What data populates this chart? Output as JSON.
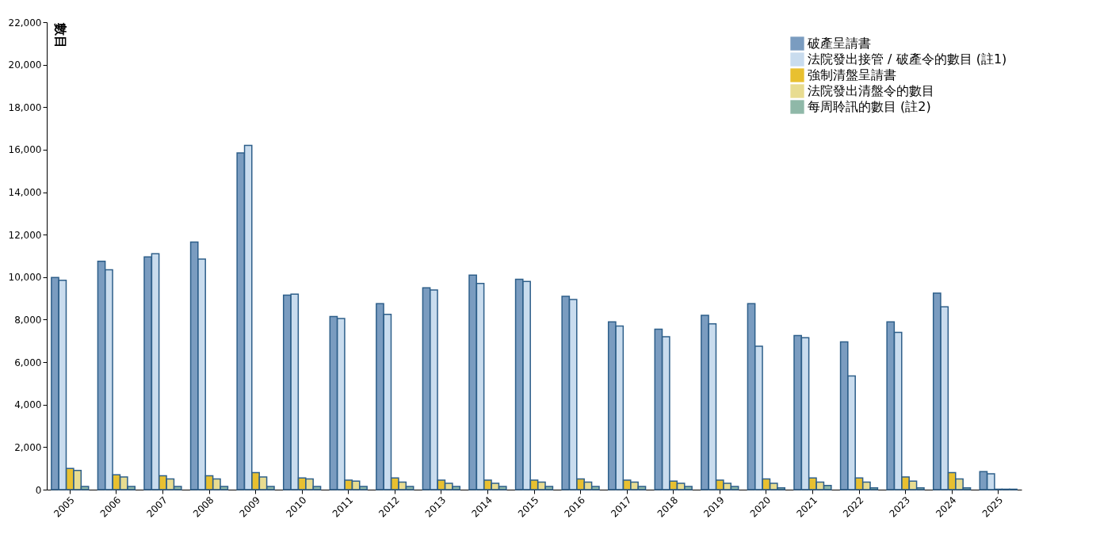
{
  "chart_data": {
    "type": "bar",
    "ylabel": "數目",
    "categories": [
      "2005",
      "2006",
      "2007",
      "2008",
      "2009",
      "2010",
      "2011",
      "2012",
      "2013",
      "2014",
      "2015",
      "2016",
      "2017",
      "2018",
      "2019",
      "2020",
      "2021",
      "2022",
      "2023",
      "2024",
      "2025"
    ],
    "series": [
      {
        "name": "破產呈請書",
        "color": "#7a9cc0",
        "values": [
          9980,
          10750,
          10950,
          11650,
          15850,
          9150,
          8150,
          8750,
          9500,
          10100,
          9900,
          9100,
          7900,
          7550,
          8200,
          8750,
          7250,
          6950,
          7900,
          9250,
          850
        ]
      },
      {
        "name": "法院發出接管 / 破產令的數目 (註1)",
        "color": "#c9dcee",
        "values": [
          9850,
          10350,
          11100,
          10850,
          16200,
          9200,
          8050,
          8250,
          9400,
          9700,
          9800,
          8950,
          7700,
          7200,
          7800,
          6750,
          7150,
          5350,
          7400,
          8600,
          750
        ]
      },
      {
        "name": "強制清盤呈請書",
        "color": "#e8c030",
        "values": [
          1000,
          700,
          650,
          650,
          800,
          550,
          450,
          550,
          450,
          450,
          450,
          500,
          450,
          400,
          450,
          500,
          550,
          550,
          600,
          800,
          20
        ]
      },
      {
        "name": "法院發出清盤令的數目",
        "color": "#e8dc90",
        "values": [
          900,
          600,
          500,
          500,
          600,
          500,
          400,
          350,
          300,
          300,
          350,
          350,
          350,
          300,
          300,
          300,
          350,
          350,
          400,
          500,
          20
        ]
      },
      {
        "name": "每周聆訊的數目 (註2)",
        "color": "#8fb8a8",
        "values": [
          150,
          150,
          150,
          150,
          150,
          150,
          150,
          150,
          150,
          150,
          150,
          150,
          150,
          150,
          150,
          80,
          200,
          80,
          80,
          80,
          20
        ]
      }
    ],
    "ylim": [
      0,
      22000
    ],
    "yticks": [
      0,
      {
        "value": 2000,
        "label": "2,000"
      },
      {
        "value": 4000,
        "label": "4,000"
      },
      {
        "value": 6000,
        "label": "6,000"
      },
      {
        "value": 8000,
        "label": "8,000"
      },
      {
        "value": 10000,
        "label": "10,000"
      },
      {
        "value": 12000,
        "label": "12,000"
      },
      {
        "value": 14000,
        "label": "14,000"
      },
      {
        "value": 16000,
        "label": "16,000"
      },
      {
        "value": 18000,
        "label": "18,000"
      },
      {
        "value": 20000,
        "label": "20,000"
      },
      {
        "value": 22000,
        "label": "22,000"
      }
    ],
    "legend": "top right"
  }
}
